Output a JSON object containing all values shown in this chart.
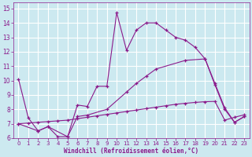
{
  "background_color": "#cce9f0",
  "grid_color": "#ffffff",
  "line_color": "#8b1a8b",
  "xlabel": "Windchill (Refroidissement éolien,°C)",
  "xlim": [
    -0.5,
    23.5
  ],
  "ylim": [
    6,
    15.4
  ],
  "xticks": [
    0,
    1,
    2,
    3,
    4,
    5,
    6,
    7,
    8,
    9,
    10,
    11,
    12,
    13,
    14,
    15,
    16,
    17,
    18,
    19,
    20,
    21,
    22,
    23
  ],
  "yticks": [
    6,
    7,
    8,
    9,
    10,
    11,
    12,
    13,
    14,
    15
  ],
  "curve1": {
    "x": [
      0,
      1,
      2,
      3,
      4,
      5,
      6,
      7,
      8,
      9,
      10,
      11,
      12,
      13,
      14,
      15,
      16,
      17,
      18,
      19,
      20,
      21,
      22,
      23
    ],
    "y": [
      10.1,
      7.4,
      6.5,
      6.8,
      6.1,
      6.1,
      8.3,
      8.2,
      9.6,
      9.6,
      14.7,
      12.1,
      13.5,
      14.0,
      14.0,
      13.5,
      13.0,
      12.8,
      12.3,
      11.5,
      9.8,
      8.1,
      7.1,
      7.5
    ]
  },
  "curve2": {
    "x": [
      0,
      2,
      3,
      5,
      6,
      7,
      9,
      11,
      12,
      13,
      14,
      17,
      19,
      20,
      21,
      22,
      23
    ],
    "y": [
      7.0,
      6.5,
      6.8,
      6.1,
      7.5,
      7.6,
      8.0,
      9.2,
      9.8,
      10.3,
      10.8,
      11.4,
      11.5,
      9.7,
      8.0,
      7.1,
      7.5
    ]
  },
  "curve3": {
    "x": [
      0,
      1,
      2,
      3,
      4,
      5,
      6,
      7,
      8,
      9,
      10,
      11,
      12,
      13,
      14,
      15,
      16,
      17,
      18,
      19,
      20,
      21,
      22,
      23
    ],
    "y": [
      7.0,
      7.05,
      7.1,
      7.15,
      7.2,
      7.25,
      7.35,
      7.45,
      7.55,
      7.65,
      7.75,
      7.85,
      7.95,
      8.05,
      8.15,
      8.25,
      8.35,
      8.42,
      8.48,
      8.53,
      8.55,
      7.25,
      7.45,
      7.62
    ]
  }
}
